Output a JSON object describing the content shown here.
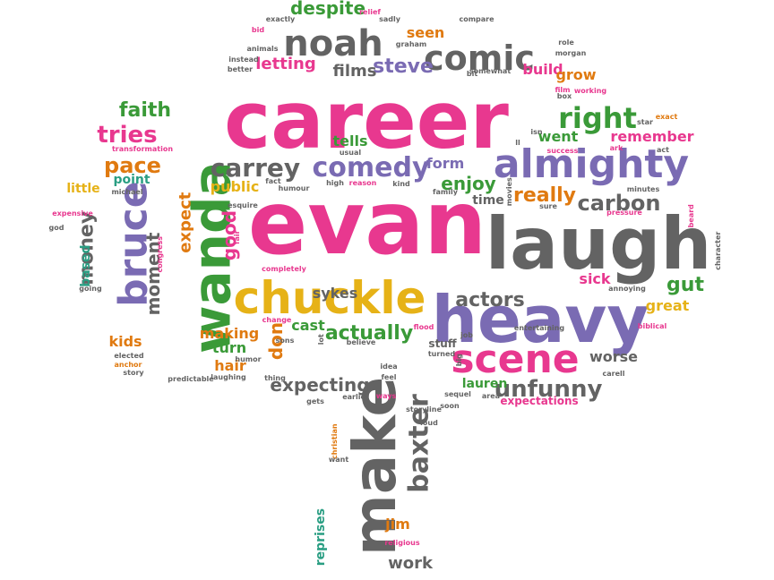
{
  "palette": {
    "pink": "#e8388f",
    "green": "#3a9a38",
    "purple": "#7a6bb3",
    "gray": "#636363",
    "orange": "#e07a10",
    "teal": "#2a9e83",
    "yellow": "#e6b217",
    "background": "#ffffff"
  },
  "words": [
    {
      "text": "career",
      "color": "pink"
    },
    {
      "text": "evan",
      "color": "pink"
    },
    {
      "text": "laugh",
      "color": "gray"
    },
    {
      "text": "heavy",
      "color": "purple"
    },
    {
      "text": "wanda",
      "color": "green"
    },
    {
      "text": "chuckle",
      "color": "yellow"
    },
    {
      "text": "almighty",
      "color": "purple"
    },
    {
      "text": "make",
      "color": "gray"
    },
    {
      "text": "scene",
      "color": "pink"
    },
    {
      "text": "noah",
      "color": "gray"
    },
    {
      "text": "comic",
      "color": "gray"
    },
    {
      "text": "bruce",
      "color": "purple"
    },
    {
      "text": "comedy",
      "color": "purple"
    },
    {
      "text": "carrey",
      "color": "gray"
    },
    {
      "text": "baxter",
      "color": "gray"
    },
    {
      "text": "right",
      "color": "green"
    },
    {
      "text": "unfunny",
      "color": "gray"
    },
    {
      "text": "steve",
      "color": "purple"
    },
    {
      "text": "carbon",
      "color": "gray"
    },
    {
      "text": "really",
      "color": "orange"
    },
    {
      "text": "actually",
      "color": "green"
    },
    {
      "text": "actors",
      "color": "gray"
    },
    {
      "text": "tries",
      "color": "pink"
    },
    {
      "text": "pace",
      "color": "orange"
    },
    {
      "text": "faith",
      "color": "green"
    },
    {
      "text": "gut",
      "color": "green"
    },
    {
      "text": "money",
      "color": "gray"
    },
    {
      "text": "moment",
      "color": "gray"
    },
    {
      "text": "expecting",
      "color": "gray"
    },
    {
      "text": "don",
      "color": "orange"
    },
    {
      "text": "good",
      "color": "pink"
    },
    {
      "text": "expect",
      "color": "orange"
    },
    {
      "text": "despite",
      "color": "green"
    },
    {
      "text": "letting",
      "color": "pink"
    },
    {
      "text": "films",
      "color": "gray"
    },
    {
      "text": "seen",
      "color": "orange"
    },
    {
      "text": "build",
      "color": "pink"
    },
    {
      "text": "grow",
      "color": "orange"
    },
    {
      "text": "remember",
      "color": "pink"
    },
    {
      "text": "went",
      "color": "green"
    },
    {
      "text": "enjoy",
      "color": "green"
    },
    {
      "text": "form",
      "color": "purple"
    },
    {
      "text": "tells",
      "color": "green"
    },
    {
      "text": "point",
      "color": "teal"
    },
    {
      "text": "little",
      "color": "yellow"
    },
    {
      "text": "public",
      "color": "yellow"
    },
    {
      "text": "sykes",
      "color": "gray"
    },
    {
      "text": "sick",
      "color": "pink"
    },
    {
      "text": "great",
      "color": "yellow"
    },
    {
      "text": "cast",
      "color": "green"
    },
    {
      "text": "making",
      "color": "orange"
    },
    {
      "text": "turn",
      "color": "green"
    },
    {
      "text": "hair",
      "color": "orange"
    },
    {
      "text": "kids",
      "color": "orange"
    },
    {
      "text": "worse",
      "color": "gray"
    },
    {
      "text": "lauren",
      "color": "green"
    },
    {
      "text": "jim",
      "color": "orange"
    },
    {
      "text": "work",
      "color": "gray"
    },
    {
      "text": "reprises",
      "color": "teal"
    },
    {
      "text": "time",
      "color": "gray"
    },
    {
      "text": "stuff",
      "color": "gray"
    },
    {
      "text": "based",
      "color": "teal"
    },
    {
      "text": "expectations",
      "color": "pink"
    },
    {
      "text": "exactly",
      "color": "gray"
    },
    {
      "text": "relief",
      "color": "pink"
    },
    {
      "text": "sadly",
      "color": "gray"
    },
    {
      "text": "compare",
      "color": "gray"
    },
    {
      "text": "role",
      "color": "gray"
    },
    {
      "text": "morgan",
      "color": "gray"
    },
    {
      "text": "bid",
      "color": "pink"
    },
    {
      "text": "animals",
      "color": "gray"
    },
    {
      "text": "graham",
      "color": "gray"
    },
    {
      "text": "instead",
      "color": "gray"
    },
    {
      "text": "better",
      "color": "gray"
    },
    {
      "text": "somewhat",
      "color": "gray"
    },
    {
      "text": "bit",
      "color": "gray"
    },
    {
      "text": "film",
      "color": "pink"
    },
    {
      "text": "working",
      "color": "pink"
    },
    {
      "text": "box",
      "color": "gray"
    },
    {
      "text": "transformation",
      "color": "pink"
    },
    {
      "text": "usual",
      "color": "gray"
    },
    {
      "text": "ll",
      "color": "gray"
    },
    {
      "text": "isn",
      "color": "gray"
    },
    {
      "text": "success",
      "color": "pink"
    },
    {
      "text": "ark",
      "color": "pink"
    },
    {
      "text": "star",
      "color": "gray"
    },
    {
      "text": "exact",
      "color": "orange"
    },
    {
      "text": "act",
      "color": "gray"
    },
    {
      "text": "michael",
      "color": "gray"
    },
    {
      "text": "humour",
      "color": "gray"
    },
    {
      "text": "fact",
      "color": "gray"
    },
    {
      "text": "high",
      "color": "gray"
    },
    {
      "text": "reason",
      "color": "pink"
    },
    {
      "text": "kind",
      "color": "gray"
    },
    {
      "text": "family",
      "color": "gray"
    },
    {
      "text": "movies",
      "color": "gray"
    },
    {
      "text": "minutes",
      "color": "gray"
    },
    {
      "text": "pressure",
      "color": "pink"
    },
    {
      "text": "sure",
      "color": "gray"
    },
    {
      "text": "expensive",
      "color": "pink"
    },
    {
      "text": "god",
      "color": "gray"
    },
    {
      "text": "esquire",
      "color": "gray"
    },
    {
      "text": "congress",
      "color": "pink"
    },
    {
      "text": "fair",
      "color": "pink"
    },
    {
      "text": "completely",
      "color": "pink"
    },
    {
      "text": "beard",
      "color": "pink"
    },
    {
      "text": "character",
      "color": "gray"
    },
    {
      "text": "annoying",
      "color": "gray"
    },
    {
      "text": "biblical",
      "color": "pink"
    },
    {
      "text": "going",
      "color": "gray"
    },
    {
      "text": "change",
      "color": "pink"
    },
    {
      "text": "sons",
      "color": "gray"
    },
    {
      "text": "lot",
      "color": "gray"
    },
    {
      "text": "believe",
      "color": "gray"
    },
    {
      "text": "flood",
      "color": "pink"
    },
    {
      "text": "job",
      "color": "gray"
    },
    {
      "text": "turned",
      "color": "gray"
    },
    {
      "text": "big",
      "color": "gray"
    },
    {
      "text": "elected",
      "color": "gray"
    },
    {
      "text": "anchor",
      "color": "orange"
    },
    {
      "text": "story",
      "color": "gray"
    },
    {
      "text": "predictable",
      "color": "gray"
    },
    {
      "text": "laughing",
      "color": "gray"
    },
    {
      "text": "humor",
      "color": "gray"
    },
    {
      "text": "thing",
      "color": "gray"
    },
    {
      "text": "idea",
      "color": "gray"
    },
    {
      "text": "feel",
      "color": "gray"
    },
    {
      "text": "gets",
      "color": "gray"
    },
    {
      "text": "earlier",
      "color": "gray"
    },
    {
      "text": "ways",
      "color": "pink"
    },
    {
      "text": "sequel",
      "color": "gray"
    },
    {
      "text": "area",
      "color": "gray"
    },
    {
      "text": "carell",
      "color": "gray"
    },
    {
      "text": "storyline",
      "color": "gray"
    },
    {
      "text": "soon",
      "color": "gray"
    },
    {
      "text": "loud",
      "color": "gray"
    },
    {
      "text": "entertaining",
      "color": "gray"
    },
    {
      "text": "christian",
      "color": "orange"
    },
    {
      "text": "want",
      "color": "gray"
    },
    {
      "text": "religious",
      "color": "pink"
    }
  ]
}
